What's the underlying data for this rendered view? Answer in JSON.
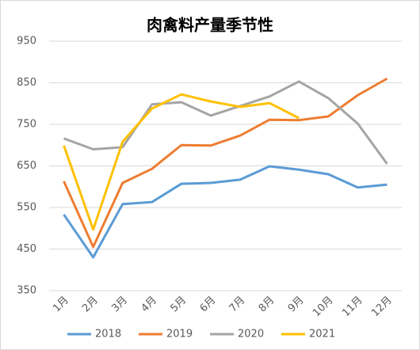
{
  "chart_data": {
    "type": "line",
    "title": "肉禽料产量季节性",
    "categories": [
      "1月",
      "2月",
      "3月",
      "4月",
      "5月",
      "6月",
      "7月",
      "8月",
      "9月",
      "10月",
      "11月",
      "12月"
    ],
    "series": [
      {
        "name": "2018",
        "color": "#5b9bd5",
        "values": [
          533,
          430,
          558,
          563,
          607,
          609,
          617,
          649,
          641,
          630,
          598,
          605
        ]
      },
      {
        "name": "2019",
        "color": "#ed7d31",
        "values": [
          613,
          455,
          609,
          643,
          700,
          699,
          723,
          761,
          760,
          769,
          820,
          860
        ]
      },
      {
        "name": "2020",
        "color": "#a5a5a5",
        "values": [
          716,
          690,
          695,
          798,
          803,
          771,
          794,
          817,
          853,
          813,
          752,
          655
        ]
      },
      {
        "name": "2021",
        "color": "#ffc000",
        "values": [
          699,
          497,
          708,
          788,
          822,
          805,
          792,
          801,
          765,
          null,
          null,
          null
        ]
      }
    ],
    "ylim": [
      350,
      950
    ],
    "yticks": [
      350,
      450,
      550,
      650,
      750,
      850,
      950
    ],
    "grid": true,
    "legend": "bottom"
  }
}
